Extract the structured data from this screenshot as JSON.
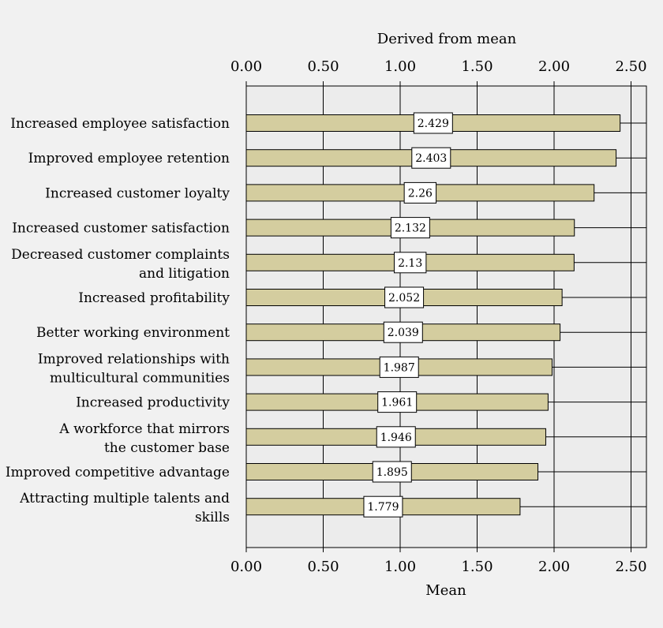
{
  "chart_data": {
    "type": "bar",
    "orientation": "horizontal",
    "top_axis_label": "Derived from mean",
    "xlabel": "Mean",
    "xlim": [
      0,
      2.6
    ],
    "ticks": [
      "0.00",
      "0.50",
      "1.00",
      "1.50",
      "2.00",
      "2.50"
    ],
    "tick_values": [
      0,
      0.5,
      1,
      1.5,
      2,
      2.5
    ],
    "grid": true,
    "categories": [
      [
        "Increased employee satisfaction"
      ],
      [
        "Improved employee retention"
      ],
      [
        "Increased customer loyalty"
      ],
      [
        "Increased customer satisfaction"
      ],
      [
        "Decreased customer complaints",
        "and litigation"
      ],
      [
        "Increased profitability"
      ],
      [
        "Better working environment"
      ],
      [
        "Improved relationships with",
        "multicultural communities"
      ],
      [
        "Increased productivity"
      ],
      [
        "A workforce that mirrors",
        "the customer base"
      ],
      [
        "Improved competitive advantage"
      ],
      [
        "Attracting multiple talents and",
        "skills"
      ]
    ],
    "values": [
      2.429,
      2.403,
      2.26,
      2.132,
      2.13,
      2.052,
      2.039,
      1.987,
      1.961,
      1.946,
      1.895,
      1.779
    ],
    "data_labels": [
      "2.429",
      "2.403",
      "2.26",
      "2.132",
      "2.13",
      "2.052",
      "2.039",
      "1.987",
      "1.961",
      "1.946",
      "1.895",
      "1.779"
    ],
    "colors": {
      "bar_fill": "#d4cd9f",
      "bar_stroke": "#000000",
      "plot_background": "#ececec",
      "label_box": "#ffffff"
    }
  }
}
